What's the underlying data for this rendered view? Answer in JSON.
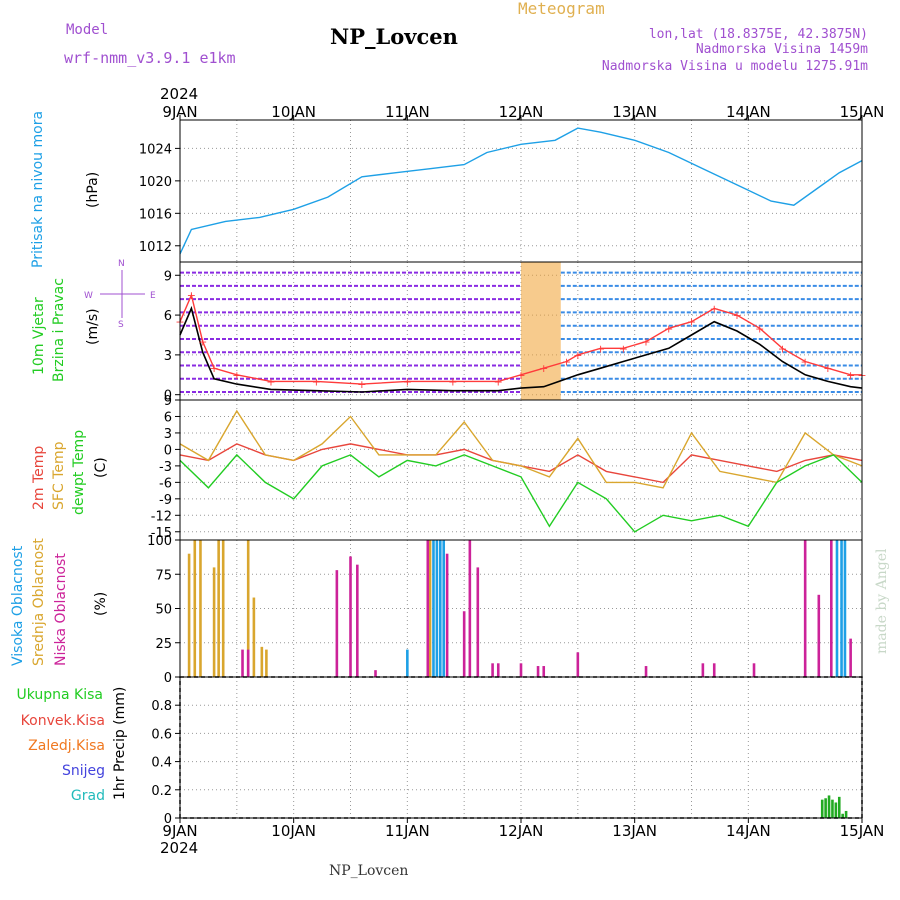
{
  "header": {
    "model_label": "Model",
    "model_name": "wrf-nmm_v3.9.1 e1km",
    "title": "NP_Lovcen",
    "subtitle": "Meteogram",
    "coords": "lon,lat (18.8375E, 42.3875N)",
    "elev": "Nadmorska Visina 1459m",
    "elev_model": "Nadmorska Visina u modelu 1275.91m",
    "footer_title": "NP_Lovcen",
    "watermark": "made by Angel"
  },
  "time_axis": {
    "year": "2024",
    "labels": [
      "9JAN",
      "10JAN",
      "11JAN",
      "12JAN",
      "13JAN",
      "14JAN",
      "15JAN"
    ]
  },
  "compass": {
    "n": "N",
    "s": "S",
    "w": "W",
    "e": "E"
  },
  "colors": {
    "pressure": "#1ea0e6",
    "wind_speed": "#000000",
    "gust": "#ff3b3b",
    "t2m": "#e8463c",
    "sfc": "#d9a62e",
    "dew": "#22cc22",
    "high_cloud": "#1ea0e6",
    "mid_cloud": "#d9a62e",
    "low_cloud": "#cc2299",
    "total_precip": "#22aa22",
    "conv_precip": "#e8463c",
    "frozen": "#f07820",
    "snow": "#4444dd",
    "hail": "#22bbbb"
  },
  "chart_data": [
    {
      "type": "line",
      "panel": "pressure",
      "ylabel": [
        "Pritisak na nivou mora",
        "(hPa)"
      ],
      "yticks": [
        1012,
        1016,
        1020,
        1024
      ],
      "ylim": [
        1010,
        1027.5
      ],
      "grid": true,
      "series": [
        {
          "name": "Pritisak na nivou mora",
          "x": [
            0,
            0.1,
            0.4,
            0.7,
            1,
            1.3,
            1.6,
            1.9,
            2.2,
            2.5,
            2.7,
            3.0,
            3.3,
            3.5,
            3.7,
            4.0,
            4.3,
            4.6,
            4.9,
            5.2,
            5.4,
            5.6,
            5.8,
            6.0
          ],
          "values": [
            1011,
            1014,
            1015,
            1015.5,
            1016.5,
            1018,
            1020.5,
            1021,
            1021.5,
            1022,
            1023.5,
            1024.5,
            1025,
            1026.5,
            1026,
            1025,
            1023.5,
            1021.5,
            1019.5,
            1017.5,
            1017,
            1019,
            1021,
            1022.5
          ]
        }
      ]
    },
    {
      "type": "line",
      "panel": "wind",
      "ylabel": [
        "10m Vjetar",
        "Brzina i Pravac",
        "(m/s)"
      ],
      "yticks": [
        0,
        3,
        6,
        9
      ],
      "ylim": [
        -0.4,
        10
      ],
      "grid": true,
      "series": [
        {
          "name": "Brzina",
          "x": [
            0,
            0.1,
            0.2,
            0.3,
            0.5,
            0.8,
            1.2,
            1.6,
            2.0,
            2.4,
            2.8,
            3.0,
            3.2,
            3.4,
            3.5,
            3.7,
            3.9,
            4.1,
            4.3,
            4.5,
            4.7,
            4.9,
            5.1,
            5.3,
            5.5,
            5.7,
            5.9,
            6.0
          ],
          "values": [
            4.5,
            6.5,
            3.2,
            1.2,
            0.8,
            0.4,
            0.3,
            0.2,
            0.4,
            0.3,
            0.3,
            0.5,
            0.6,
            1.2,
            1.5,
            2.0,
            2.5,
            3.0,
            3.5,
            4.5,
            5.5,
            4.8,
            3.8,
            2.5,
            1.5,
            1.0,
            0.6,
            0.5
          ]
        },
        {
          "name": "Udari",
          "x": [
            0,
            0.1,
            0.2,
            0.3,
            0.5,
            0.8,
            1.2,
            1.6,
            2.0,
            2.4,
            2.8,
            3.0,
            3.2,
            3.4,
            3.5,
            3.7,
            3.9,
            4.1,
            4.3,
            4.5,
            4.7,
            4.9,
            5.1,
            5.3,
            5.5,
            5.7,
            5.9,
            6.0
          ],
          "values": [
            5.5,
            7.5,
            4.0,
            2.0,
            1.5,
            1.0,
            1.0,
            0.8,
            1.0,
            1.0,
            1.0,
            1.5,
            2.0,
            2.5,
            3.0,
            3.5,
            3.5,
            4.0,
            5.0,
            5.5,
            6.5,
            6.0,
            5.0,
            3.5,
            2.5,
            2.0,
            1.5,
            1.5
          ]
        }
      ]
    },
    {
      "type": "line",
      "panel": "temperature",
      "ylabel": [
        "2m Temp",
        "SFC Temp",
        "dewpt Temp",
        "(C)"
      ],
      "yticks": [
        -15,
        -12,
        -9,
        -6,
        -3,
        0,
        3,
        6,
        9
      ],
      "ylim": [
        -16.5,
        9
      ],
      "grid": true,
      "series": [
        {
          "name": "2m Temp",
          "x": [
            0,
            0.25,
            0.5,
            0.75,
            1.0,
            1.25,
            1.5,
            1.75,
            2.0,
            2.25,
            2.5,
            2.75,
            3.0,
            3.25,
            3.5,
            3.75,
            4.0,
            4.25,
            4.5,
            4.75,
            5.0,
            5.25,
            5.5,
            5.75,
            6.0
          ],
          "values": [
            -1,
            -2,
            1,
            -1,
            -2,
            0,
            1,
            0,
            -1,
            -1,
            0,
            -2,
            -3,
            -4,
            -1,
            -4,
            -5,
            -6,
            -1,
            -2,
            -3,
            -4,
            -2,
            -1,
            -2
          ]
        },
        {
          "name": "SFC Temp",
          "x": [
            0,
            0.25,
            0.5,
            0.75,
            1.0,
            1.25,
            1.5,
            1.75,
            2.0,
            2.25,
            2.5,
            2.75,
            3.0,
            3.25,
            3.5,
            3.75,
            4.0,
            4.25,
            4.5,
            4.75,
            5.0,
            5.25,
            5.5,
            5.75,
            6.0
          ],
          "values": [
            1,
            -2,
            7,
            -1,
            -2,
            1,
            6,
            -1,
            -1,
            -1,
            5,
            -2,
            -3,
            -5,
            2,
            -6,
            -6,
            -7,
            3,
            -4,
            -5,
            -6,
            3,
            -1,
            -3
          ]
        },
        {
          "name": "dewpt Temp",
          "x": [
            0,
            0.25,
            0.5,
            0.75,
            1.0,
            1.25,
            1.5,
            1.75,
            2.0,
            2.25,
            2.5,
            2.75,
            3.0,
            3.25,
            3.5,
            3.75,
            4.0,
            4.25,
            4.5,
            4.75,
            5.0,
            5.25,
            5.5,
            5.75,
            6.0
          ],
          "values": [
            -2,
            -7,
            -1,
            -6,
            -9,
            -3,
            -1,
            -5,
            -2,
            -3,
            -1,
            -3,
            -5,
            -14,
            -6,
            -9,
            -15,
            -12,
            -13,
            -12,
            -14,
            -6,
            -3,
            -1,
            -6
          ]
        }
      ]
    },
    {
      "type": "bar",
      "panel": "cloud",
      "ylabel": [
        "Visoka Oblacnost",
        "Srednja Oblacnost",
        "Niska Oblacnost",
        "(%)"
      ],
      "yticks": [
        0,
        25,
        50,
        75,
        100
      ],
      "ylim": [
        0,
        100
      ],
      "grid": true,
      "series": [
        {
          "name": "Visoka Oblacnost",
          "x": [
            2.0,
            2.23,
            2.26,
            2.29,
            2.32,
            5.78,
            5.82,
            5.85
          ],
          "values": [
            20,
            100,
            100,
            100,
            100,
            100,
            100,
            100
          ]
        },
        {
          "name": "Srednja Oblacnost",
          "x": [
            0.08,
            0.13,
            0.18,
            0.3,
            0.34,
            0.38,
            0.6,
            0.65,
            0.72,
            0.76,
            2.2
          ],
          "values": [
            90,
            100,
            100,
            80,
            100,
            100,
            100,
            58,
            22,
            20,
            100
          ]
        },
        {
          "name": "Niska Oblacnost",
          "x": [
            0.55,
            0.6,
            1.38,
            1.5,
            1.56,
            1.72,
            2.18,
            2.35,
            2.5,
            2.55,
            2.62,
            2.75,
            2.8,
            3.0,
            3.15,
            3.2,
            3.5,
            4.1,
            4.6,
            4.7,
            5.05,
            5.5,
            5.62,
            5.73,
            5.9
          ],
          "values": [
            20,
            20,
            78,
            88,
            82,
            5,
            100,
            90,
            48,
            100,
            80,
            10,
            10,
            10,
            8,
            8,
            18,
            8,
            10,
            10,
            10,
            100,
            60,
            100,
            28
          ]
        }
      ]
    },
    {
      "type": "bar",
      "panel": "precip",
      "ylabel": [
        "Ukupna Kisa",
        "Konvek.Kisa",
        "Zaledj.Kisa",
        "Snijeg",
        "Grad",
        "1hr Precip (mm)"
      ],
      "yticks": [
        0,
        0.2,
        0.4,
        0.6,
        0.8
      ],
      "ylim": [
        0,
        1.0
      ],
      "grid": true,
      "series": [
        {
          "name": "Ukupna Kisa",
          "x": [
            5.65,
            5.68,
            5.71,
            5.74,
            5.77,
            5.8,
            5.83,
            5.86
          ],
          "values": [
            0.13,
            0.14,
            0.16,
            0.13,
            0.11,
            0.15,
            0.03,
            0.05
          ]
        }
      ]
    }
  ]
}
